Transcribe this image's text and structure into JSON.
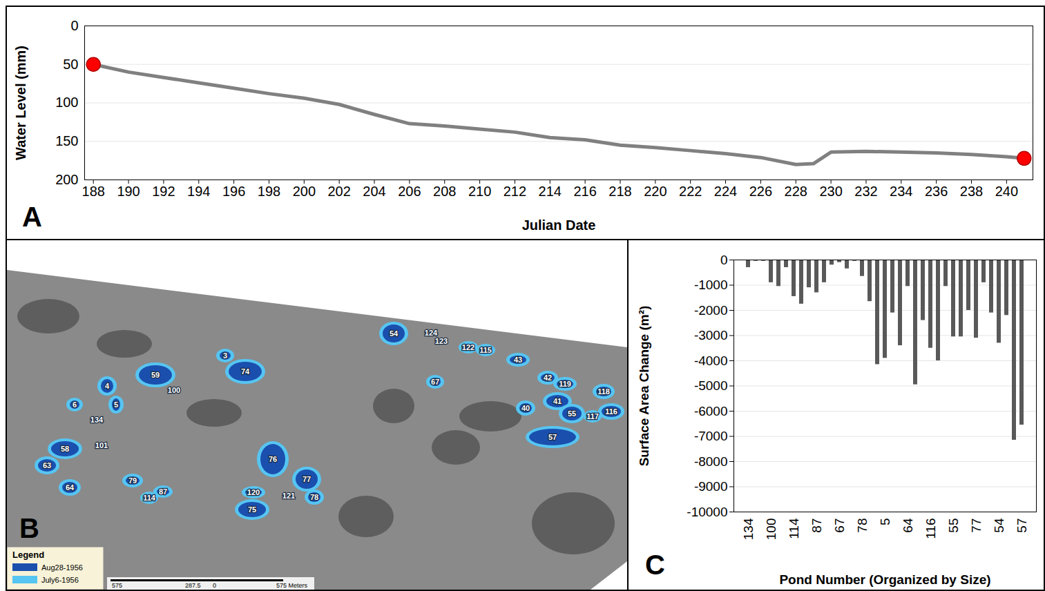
{
  "chart_data": [
    {
      "type": "line",
      "annotations": [
        "A"
      ],
      "xlabel": "Julian Date",
      "ylabel": "Water Level (mm)",
      "x": [
        188,
        190,
        192,
        194,
        196,
        198,
        200,
        202,
        204,
        206,
        208,
        210,
        212,
        214,
        216,
        218,
        220,
        222,
        224,
        226,
        228,
        229,
        230,
        232,
        234,
        236,
        238,
        240,
        241
      ],
      "series": [
        {
          "type": "line",
          "color": "#808080",
          "values": [
            50,
            60,
            67,
            74,
            81,
            88,
            94,
            102,
            115,
            127,
            130,
            134,
            138,
            145,
            148,
            155,
            158,
            162,
            166,
            171,
            180,
            179,
            164,
            163,
            164,
            165,
            167,
            170,
            172
          ]
        },
        {
          "type": "scatter",
          "marker": "circle",
          "color": "#ff0000",
          "values": [
            50,
            null,
            null,
            null,
            null,
            null,
            null,
            null,
            null,
            null,
            null,
            null,
            null,
            null,
            null,
            null,
            null,
            null,
            null,
            null,
            null,
            null,
            null,
            null,
            null,
            null,
            null,
            null,
            172
          ]
        }
      ],
      "xlim": [
        187.5,
        241.5
      ],
      "xticks": [
        188,
        190,
        192,
        194,
        196,
        198,
        200,
        202,
        204,
        206,
        208,
        210,
        212,
        214,
        216,
        218,
        220,
        222,
        224,
        226,
        228,
        230,
        232,
        234,
        236,
        238,
        240
      ],
      "ylim": [
        200,
        0
      ],
      "yticks": [
        0,
        50,
        100,
        150,
        200
      ],
      "grid": true
    },
    {
      "type": "map",
      "annotations": [
        "B"
      ],
      "legend_title": "Legend",
      "series": [
        {
          "name": "Aug28-1956",
          "color": "#1a4fae"
        },
        {
          "name": "July6-1956",
          "color": "#56c5f2"
        }
      ],
      "labels": [
        "54",
        "124",
        "123",
        "122",
        "115",
        "43",
        "3",
        "74",
        "59",
        "100",
        "4",
        "5",
        "6",
        "134",
        "67",
        "42",
        "119",
        "118",
        "40",
        "41",
        "55",
        "117",
        "116",
        "57",
        "101",
        "58",
        "63",
        "64",
        "79",
        "87",
        "114",
        "76",
        "77",
        "120",
        "121",
        "78",
        "75"
      ],
      "scale_labels": [
        "575",
        "287.5",
        "0",
        "575 Meters"
      ]
    },
    {
      "type": "bar",
      "annotations": [
        "C"
      ],
      "xlabel": "Pond Number (Organized by Size)",
      "ylabel": "Surface Area Change (m²)",
      "categories": [
        "134",
        null,
        null,
        "100",
        null,
        null,
        "114",
        null,
        null,
        "87",
        null,
        null,
        "67",
        null,
        null,
        "78",
        null,
        null,
        "5",
        null,
        null,
        "64",
        null,
        null,
        "116",
        null,
        null,
        "55",
        null,
        null,
        "77",
        null,
        null,
        "54",
        null,
        null,
        "57"
      ],
      "values": [
        -300,
        -50,
        -50,
        -900,
        -1050,
        -300,
        -1450,
        -1750,
        -1100,
        -1300,
        -900,
        -200,
        -100,
        -350,
        -50,
        -650,
        -1650,
        -4150,
        -3900,
        -2100,
        -3400,
        -1050,
        -4950,
        -2400,
        -3500,
        -4000,
        -1050,
        -3050,
        -3050,
        -2000,
        -3100,
        -900,
        -2100,
        -3300,
        -2200,
        -7150,
        -6550
      ],
      "color": "#595959",
      "ylim": [
        -10000,
        0
      ],
      "yticks": [
        0,
        -1000,
        -2000,
        -3000,
        -4000,
        -5000,
        -6000,
        -7000,
        -8000,
        -9000,
        -10000
      ],
      "grid": true
    }
  ]
}
